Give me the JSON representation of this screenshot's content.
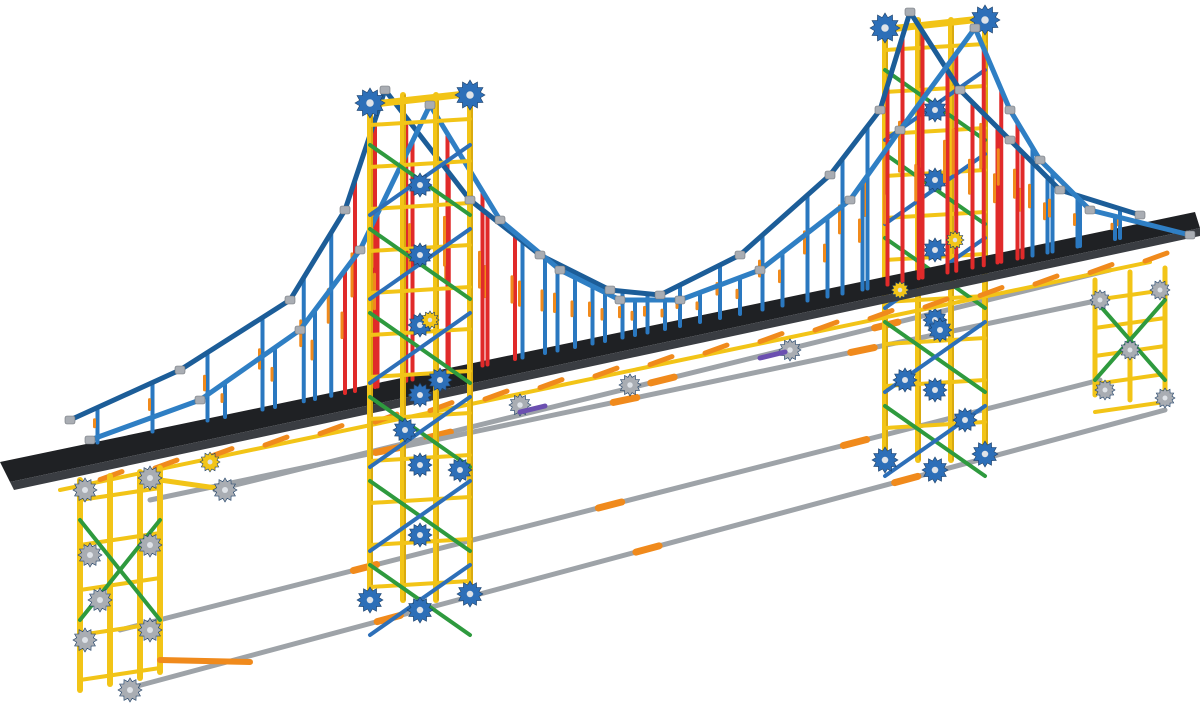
{
  "image": {
    "subject": "suspension-bridge-model",
    "colors": {
      "background": "#ffffff",
      "deck": "#1f2124",
      "deck_edge": "#3a3d42",
      "main_cable": "#2f7fc4",
      "main_cable_dark": "#1c5d98",
      "hanger_blue": "#2a78c0",
      "hanger_red": "#e02a2a",
      "tower_yellow": "#f2c417",
      "tower_yellow_dark": "#c99a0a",
      "connector_blue": "#2d6fb8",
      "connector_gray": "#a9adb3",
      "connector_green": "#2e9a3e",
      "rod_gray": "#9ea3a8",
      "rod_orange": "#f08a1c",
      "rod_purple": "#6b4fb0"
    }
  }
}
